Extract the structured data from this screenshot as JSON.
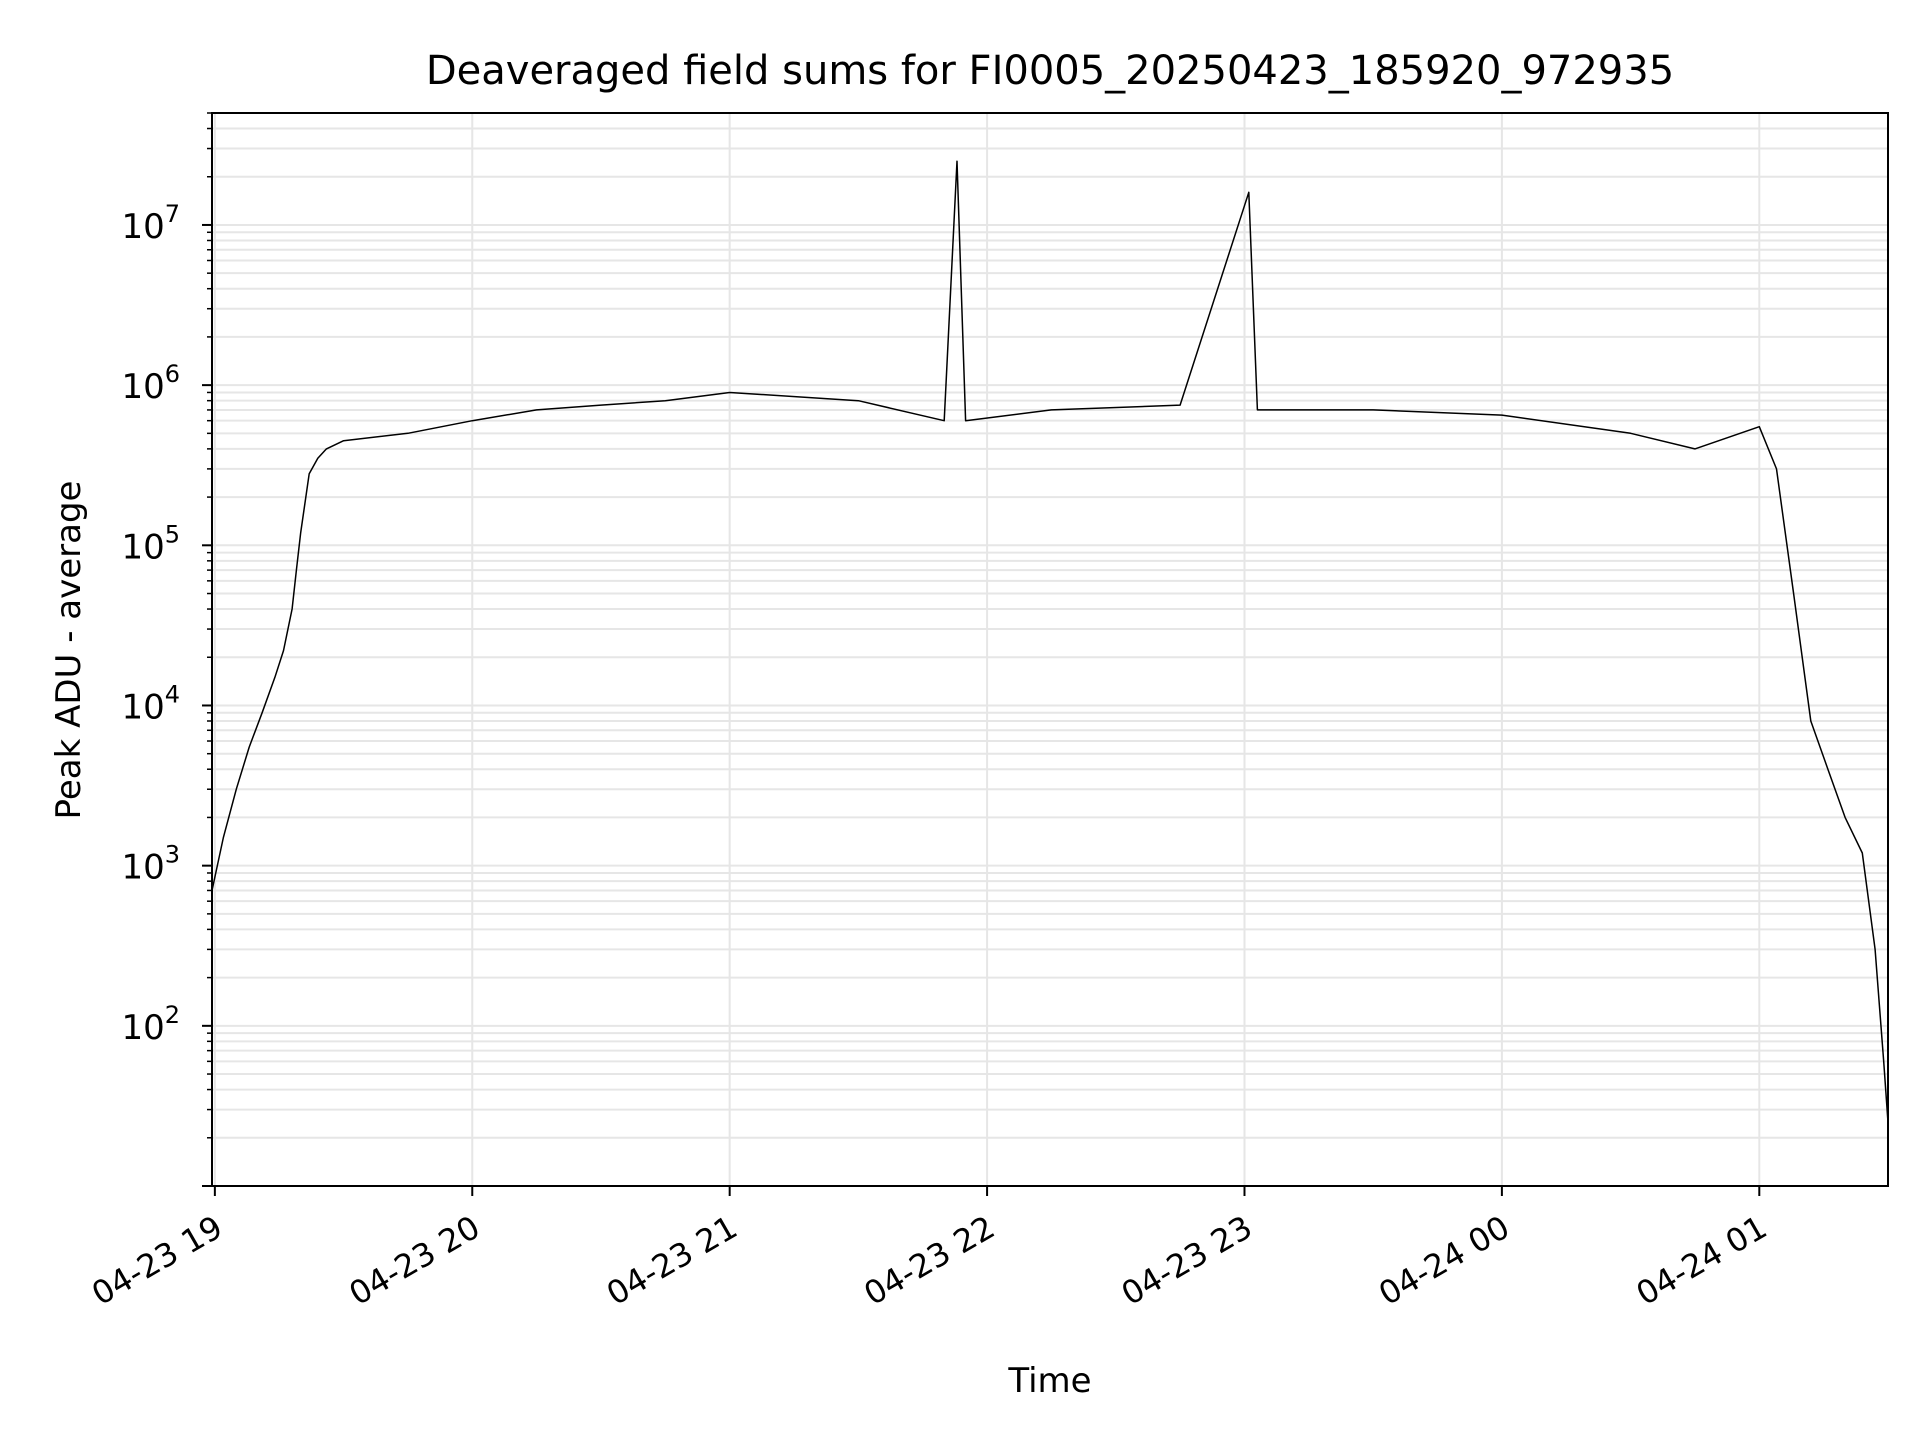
{
  "chart_data": {
    "type": "line",
    "title": "Deaveraged field sums for FI0005_20250423_185920_972935",
    "xlabel": "Time",
    "ylabel": "Peak ADU - average",
    "yscale": "log",
    "grid": true,
    "x_tick_labels": [
      "04-23 19",
      "04-23 20",
      "04-23 21",
      "04-23 22",
      "04-23 23",
      "04-24 00",
      "04-24 01"
    ],
    "x_ticks": [
      "2025-04-23 19:00",
      "2025-04-23 20:00",
      "2025-04-23 21:00",
      "2025-04-23 22:00",
      "2025-04-23 23:00",
      "2025-04-24 00:00",
      "2025-04-24 01:00"
    ],
    "y_tick_labels": [
      {
        "base": "10",
        "exp": "2",
        "value": 100
      },
      {
        "base": "10",
        "exp": "3",
        "value": 1000
      },
      {
        "base": "10",
        "exp": "4",
        "value": 10000
      },
      {
        "base": "10",
        "exp": "5",
        "value": 100000
      },
      {
        "base": "10",
        "exp": "6",
        "value": 1000000
      },
      {
        "base": "10",
        "exp": "7",
        "value": 10000000
      }
    ],
    "xlim": [
      "2025-04-23 18:59:20",
      "2025-04-24 01:30:00"
    ],
    "ylim": [
      10,
      50000000
    ],
    "line_color": "#000000",
    "grid_color": "#e6e6e6",
    "series": [
      {
        "x": [
          "2025-04-23 18:59:20",
          "2025-04-23 19:02:00",
          "2025-04-23 19:05:00",
          "2025-04-23 19:08:00",
          "2025-04-23 19:11:00",
          "2025-04-23 19:14:00",
          "2025-04-23 19:16:00",
          "2025-04-23 19:18:00",
          "2025-04-23 19:19:00",
          "2025-04-23 19:20:00",
          "2025-04-23 19:22:00",
          "2025-04-23 19:24:00",
          "2025-04-23 19:26:00",
          "2025-04-23 19:30:00",
          "2025-04-23 19:45:00",
          "2025-04-23 20:00:00",
          "2025-04-23 20:15:00",
          "2025-04-23 20:30:00",
          "2025-04-23 20:45:00",
          "2025-04-23 21:00:00",
          "2025-04-23 21:30:00",
          "2025-04-23 21:50:00",
          "2025-04-23 21:53:00",
          "2025-04-23 21:55:00",
          "2025-04-23 22:15:00",
          "2025-04-23 22:45:00",
          "2025-04-23 23:01:00",
          "2025-04-23 23:03:00",
          "2025-04-23 23:30:00",
          "2025-04-24 00:00:00",
          "2025-04-24 00:30:00",
          "2025-04-24 00:45:00",
          "2025-04-24 01:00:00",
          "2025-04-24 01:04:00",
          "2025-04-24 01:08:00",
          "2025-04-24 01:12:00",
          "2025-04-24 01:16:00",
          "2025-04-24 01:20:00",
          "2025-04-24 01:24:00",
          "2025-04-24 01:27:00",
          "2025-04-24 01:29:00",
          "2025-04-24 01:30:00"
        ],
        "y": [
          700,
          1500,
          3000,
          5500,
          9000,
          15000,
          22000,
          40000,
          70000,
          120000,
          280000,
          350000,
          400000,
          450000,
          500000,
          600000,
          700000,
          750000,
          800000,
          900000,
          800000,
          600000,
          25000000,
          600000,
          700000,
          750000,
          16000000,
          700000,
          700000,
          650000,
          500000,
          400000,
          550000,
          300000,
          50000,
          8000,
          4000,
          2000,
          1200,
          300,
          60,
          25
        ]
      }
    ]
  }
}
